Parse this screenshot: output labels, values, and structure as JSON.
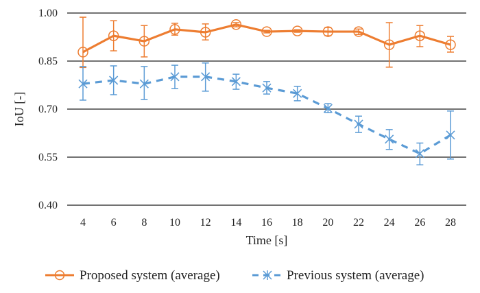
{
  "chart_data": {
    "type": "line",
    "title": "",
    "xlabel": "Time [s]",
    "ylabel": "IoU [-]",
    "x": [
      4,
      6,
      8,
      10,
      12,
      14,
      16,
      18,
      20,
      22,
      24,
      26,
      28
    ],
    "xtick_labels": [
      "4",
      "6",
      "8",
      "10",
      "12",
      "14",
      "16",
      "18",
      "20",
      "22",
      "24",
      "26",
      "28"
    ],
    "ylim": [
      0.4,
      1.0
    ],
    "yticks": [
      0.4,
      0.55,
      0.7,
      0.85,
      1.0
    ],
    "ytick_labels": [
      "0.40",
      "0.55",
      "0.70",
      "0.85",
      "1.00"
    ],
    "grid": "horizontal",
    "legend_position": "bottom",
    "series": [
      {
        "name": "Proposed system (average)",
        "color": "#ED7D31",
        "line_style": "solid",
        "marker": "circle",
        "values": [
          0.878,
          0.929,
          0.912,
          0.949,
          0.94,
          0.964,
          0.942,
          0.944,
          0.942,
          0.942,
          0.901,
          0.929,
          0.901
        ],
        "err_upper": [
          0.987,
          0.976,
          0.961,
          0.968,
          0.966,
          0.97,
          0.946,
          0.948,
          0.955,
          0.95,
          0.97,
          0.961,
          0.927
        ],
        "err_lower": [
          0.83,
          0.882,
          0.863,
          0.931,
          0.916,
          0.957,
          0.938,
          0.94,
          0.929,
          0.933,
          0.831,
          0.895,
          0.878
        ]
      },
      {
        "name": "Previous system (average)",
        "color": "#5B9BD5",
        "line_style": "dashed",
        "marker": "x-star",
        "values": [
          0.779,
          0.79,
          0.779,
          0.801,
          0.801,
          0.786,
          0.766,
          0.749,
          0.702,
          0.653,
          0.606,
          0.561,
          0.619
        ],
        "err_upper": [
          0.833,
          0.835,
          0.833,
          0.837,
          0.844,
          0.809,
          0.786,
          0.771,
          0.717,
          0.678,
          0.636,
          0.594,
          0.694
        ],
        "err_lower": [
          0.728,
          0.745,
          0.73,
          0.764,
          0.756,
          0.762,
          0.747,
          0.726,
          0.689,
          0.627,
          0.574,
          0.526,
          0.544
        ]
      }
    ]
  }
}
